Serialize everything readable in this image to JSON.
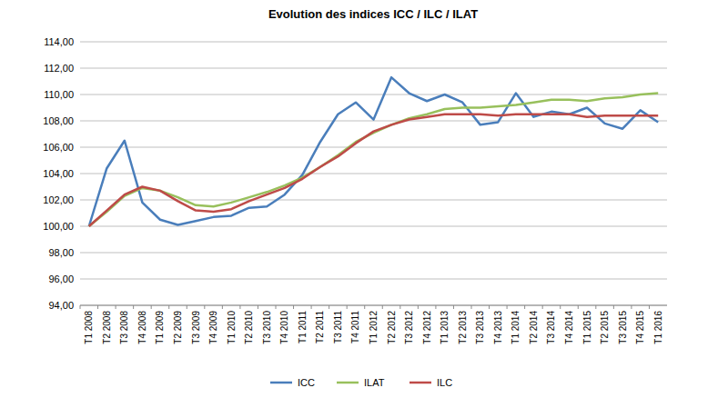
{
  "chart_data": {
    "type": "line",
    "title": "Evolution des indices ICC / ILC / ILAT",
    "categories": [
      "T1 2008",
      "T2 2008",
      "T3 2008",
      "T4 2008",
      "T1 2009",
      "T2 2009",
      "T3 2009",
      "T4 2009",
      "T1 2010",
      "T2 2010",
      "T3 2010",
      "T4 2010",
      "T1 2011",
      "T2 2011",
      "T3 2011",
      "T4 2011",
      "T1 2012",
      "T2 2012",
      "T3 2012",
      "T4 2012",
      "T1 2013",
      "T2 2013",
      "T3 2013",
      "T4 2013",
      "T1 2014",
      "T2 2014",
      "T3 2014",
      "T4 2014",
      "T1 2015",
      "T2 2015",
      "T3 2015",
      "T4 2015",
      "T1 2016"
    ],
    "series": [
      {
        "name": "ICC",
        "color": "#4a7ebb",
        "values": [
          100.0,
          104.4,
          106.5,
          101.8,
          100.5,
          100.1,
          100.4,
          100.7,
          100.8,
          101.4,
          101.5,
          102.4,
          103.9,
          106.4,
          108.5,
          109.4,
          108.1,
          111.3,
          110.1,
          109.5,
          110.0,
          109.4,
          107.7,
          107.9,
          110.1,
          108.3,
          108.7,
          108.5,
          109.0,
          107.8,
          107.4,
          108.8,
          107.9
        ]
      },
      {
        "name": "ILAT",
        "color": "#98c05c",
        "values": [
          100.0,
          101.1,
          102.3,
          102.9,
          102.7,
          102.2,
          101.6,
          101.5,
          101.8,
          102.2,
          102.6,
          103.1,
          103.7,
          104.5,
          105.4,
          106.4,
          107.1,
          107.7,
          108.2,
          108.5,
          108.9,
          109.0,
          109.0,
          109.1,
          109.2,
          109.4,
          109.6,
          109.6,
          109.5,
          109.7,
          109.8,
          110.0,
          110.1
        ]
      },
      {
        "name": "ILC",
        "color": "#be4b48",
        "values": [
          100.0,
          101.2,
          102.4,
          103.0,
          102.7,
          101.9,
          101.2,
          101.1,
          101.3,
          101.9,
          102.4,
          102.9,
          103.6,
          104.5,
          105.3,
          106.3,
          107.2,
          107.7,
          108.1,
          108.3,
          108.5,
          108.5,
          108.5,
          108.4,
          108.5,
          108.5,
          108.5,
          108.5,
          108.3,
          108.4,
          108.4,
          108.4,
          108.4
        ]
      }
    ],
    "ylim": [
      94,
      114
    ],
    "yticks": [
      {
        "value": 94,
        "label": "94,00"
      },
      {
        "value": 96,
        "label": "96,00"
      },
      {
        "value": 98,
        "label": "98,00"
      },
      {
        "value": 100,
        "label": "100,00"
      },
      {
        "value": 102,
        "label": "102,00"
      },
      {
        "value": 104,
        "label": "104,00"
      },
      {
        "value": 106,
        "label": "106,00"
      },
      {
        "value": 108,
        "label": "108,00"
      },
      {
        "value": 110,
        "label": "110,00"
      },
      {
        "value": 112,
        "label": "112,00"
      },
      {
        "value": 114,
        "label": "114,00"
      }
    ],
    "grid": true,
    "legend": "bottom"
  }
}
